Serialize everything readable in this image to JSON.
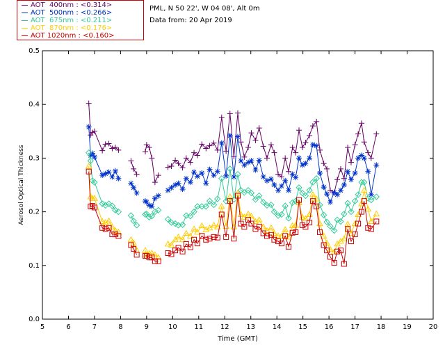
{
  "header": {
    "station": "PML, N 50 22', W 04 08', Alt 0m",
    "date": "Data from: 20 Apr 2019"
  },
  "legend": [
    {
      "label": "AOT  400nm : <0.314>",
      "color": "#660066"
    },
    {
      "label": "AOT  500nm : <0.266>",
      "color": "#0033cc"
    },
    {
      "label": "AOT  675nm : <0.211>",
      "color": "#33cc99"
    },
    {
      "label": "AOT  870nm : <0.176>",
      "color": "#ffcc00"
    },
    {
      "label": "AOT 1020nm : <0.160>",
      "color": "#cc0000"
    }
  ],
  "chart_data": {
    "type": "scatter",
    "title": "",
    "xlabel": "Time (GMT)",
    "ylabel": "Aerosol Optical Thickness",
    "xlim": [
      5,
      20
    ],
    "ylim": [
      0.0,
      0.5
    ],
    "xticks": [
      "5",
      "6",
      "7",
      "8",
      "9",
      "10",
      "11",
      "12",
      "13",
      "14",
      "15",
      "16",
      "17",
      "18",
      "19",
      "20"
    ],
    "yticks": [
      "0.0",
      "0.1",
      "0.2",
      "0.3",
      "0.4",
      "0.5"
    ],
    "x": [
      6.78,
      6.85,
      6.92,
      7.0,
      7.3,
      7.42,
      7.55,
      7.68,
      7.8,
      7.92,
      8.4,
      8.5,
      8.62,
      8.95,
      9.0,
      9.1,
      9.2,
      9.32,
      9.45,
      9.82,
      9.95,
      10.1,
      10.22,
      10.38,
      10.52,
      10.68,
      10.82,
      10.95,
      11.12,
      11.28,
      11.42,
      11.58,
      11.72,
      11.88,
      12.05,
      12.2,
      12.35,
      12.5,
      12.62,
      12.75,
      12.9,
      13.02,
      13.18,
      13.32,
      13.48,
      13.62,
      13.78,
      13.9,
      14.05,
      14.18,
      14.32,
      14.45,
      14.6,
      14.72,
      14.85,
      14.98,
      15.1,
      15.25,
      15.38,
      15.52,
      15.65,
      15.8,
      15.92,
      16.05,
      16.2,
      16.32,
      16.45,
      16.58,
      16.72,
      16.85,
      17.0,
      17.12,
      17.25,
      17.35,
      17.5,
      17.62,
      17.82
    ],
    "series": [
      {
        "name": "AOT 400nm",
        "marker": "plus",
        "color": "#660066",
        "values": [
          0.402,
          0.343,
          0.348,
          0.35,
          0.314,
          0.326,
          0.327,
          0.318,
          0.32,
          0.315,
          0.295,
          0.28,
          0.27,
          0.312,
          0.325,
          0.32,
          0.3,
          0.255,
          0.268,
          0.283,
          0.285,
          0.296,
          0.29,
          0.282,
          0.3,
          0.292,
          0.31,
          0.305,
          0.326,
          0.318,
          0.323,
          0.328,
          0.315,
          0.376,
          0.313,
          0.383,
          0.303,
          0.384,
          0.33,
          0.302,
          0.32,
          0.347,
          0.333,
          0.356,
          0.322,
          0.3,
          0.325,
          0.31,
          0.27,
          0.265,
          0.3,
          0.275,
          0.32,
          0.31,
          0.352,
          0.32,
          0.329,
          0.342,
          0.36,
          0.368,
          0.315,
          0.29,
          0.28,
          0.24,
          0.235,
          0.26,
          0.28,
          0.262,
          0.32,
          0.292,
          0.325,
          0.345,
          0.365,
          0.33,
          0.31,
          0.3,
          0.345
        ]
      },
      {
        "name": "AOT 500nm",
        "marker": "asterisk",
        "color": "#0033cc",
        "values": [
          0.358,
          0.305,
          0.309,
          0.302,
          0.268,
          0.271,
          0.274,
          0.265,
          0.276,
          0.262,
          0.253,
          0.245,
          0.235,
          0.22,
          0.218,
          0.212,
          0.21,
          0.225,
          0.23,
          0.24,
          0.245,
          0.25,
          0.253,
          0.242,
          0.262,
          0.255,
          0.274,
          0.266,
          0.272,
          0.253,
          0.279,
          0.268,
          0.275,
          0.328,
          0.267,
          0.342,
          0.265,
          0.34,
          0.295,
          0.287,
          0.292,
          0.295,
          0.278,
          0.296,
          0.265,
          0.258,
          0.261,
          0.25,
          0.24,
          0.248,
          0.258,
          0.24,
          0.27,
          0.264,
          0.3,
          0.287,
          0.29,
          0.3,
          0.325,
          0.323,
          0.272,
          0.246,
          0.233,
          0.218,
          0.236,
          0.232,
          0.24,
          0.25,
          0.275,
          0.26,
          0.272,
          0.3,
          0.305,
          0.3,
          0.275,
          0.232,
          0.287
        ]
      },
      {
        "name": "AOT 675nm",
        "marker": "diamond",
        "color": "#33cc99",
        "values": [
          0.31,
          0.295,
          0.258,
          0.255,
          0.215,
          0.212,
          0.215,
          0.211,
          0.203,
          0.2,
          0.193,
          0.183,
          0.175,
          0.195,
          0.196,
          0.19,
          0.192,
          0.2,
          0.203,
          0.186,
          0.18,
          0.178,
          0.175,
          0.176,
          0.193,
          0.192,
          0.2,
          0.21,
          0.21,
          0.21,
          0.22,
          0.213,
          0.224,
          0.262,
          0.22,
          0.28,
          0.223,
          0.27,
          0.24,
          0.236,
          0.24,
          0.235,
          0.223,
          0.23,
          0.218,
          0.212,
          0.213,
          0.2,
          0.193,
          0.195,
          0.211,
          0.188,
          0.217,
          0.22,
          0.245,
          0.235,
          0.23,
          0.24,
          0.255,
          0.262,
          0.213,
          0.194,
          0.181,
          0.173,
          0.165,
          0.185,
          0.182,
          0.196,
          0.216,
          0.2,
          0.22,
          0.232,
          0.255,
          0.255,
          0.225,
          0.222,
          0.228
        ]
      },
      {
        "name": "AOT 870nm",
        "marker": "triangle",
        "color": "#ffcc00",
        "values": [
          0.285,
          0.228,
          0.225,
          0.225,
          0.182,
          0.18,
          0.183,
          0.172,
          0.165,
          0.162,
          0.148,
          0.142,
          0.128,
          0.128,
          0.12,
          0.122,
          0.123,
          0.12,
          0.115,
          0.14,
          0.138,
          0.148,
          0.153,
          0.148,
          0.16,
          0.155,
          0.168,
          0.162,
          0.174,
          0.167,
          0.17,
          0.175,
          0.172,
          0.21,
          0.173,
          0.228,
          0.172,
          0.235,
          0.195,
          0.19,
          0.196,
          0.192,
          0.182,
          0.185,
          0.172,
          0.165,
          0.17,
          0.16,
          0.155,
          0.155,
          0.167,
          0.153,
          0.174,
          0.175,
          0.217,
          0.19,
          0.187,
          0.195,
          0.232,
          0.224,
          0.178,
          0.155,
          0.142,
          0.13,
          0.125,
          0.14,
          0.145,
          0.15,
          0.177,
          0.16,
          0.178,
          0.195,
          0.215,
          0.24,
          0.205,
          0.182,
          0.196
        ]
      },
      {
        "name": "AOT 1020nm",
        "marker": "square",
        "color": "#cc0000",
        "values": [
          0.275,
          0.21,
          0.211,
          0.208,
          0.17,
          0.168,
          0.17,
          0.158,
          0.158,
          0.155,
          0.138,
          0.131,
          0.12,
          0.118,
          0.118,
          0.115,
          0.115,
          0.108,
          0.108,
          0.123,
          0.121,
          0.128,
          0.133,
          0.126,
          0.14,
          0.134,
          0.148,
          0.141,
          0.155,
          0.148,
          0.15,
          0.153,
          0.152,
          0.195,
          0.153,
          0.22,
          0.15,
          0.23,
          0.178,
          0.172,
          0.185,
          0.178,
          0.168,
          0.172,
          0.16,
          0.155,
          0.157,
          0.148,
          0.145,
          0.141,
          0.155,
          0.135,
          0.161,
          0.162,
          0.222,
          0.175,
          0.172,
          0.18,
          0.22,
          0.21,
          0.162,
          0.138,
          0.128,
          0.116,
          0.105,
          0.126,
          0.128,
          0.103,
          0.168,
          0.145,
          0.158,
          0.178,
          0.2,
          0.22,
          0.17,
          0.168,
          0.182
        ]
      }
    ],
    "grid": false,
    "legend_position": "top-left"
  }
}
